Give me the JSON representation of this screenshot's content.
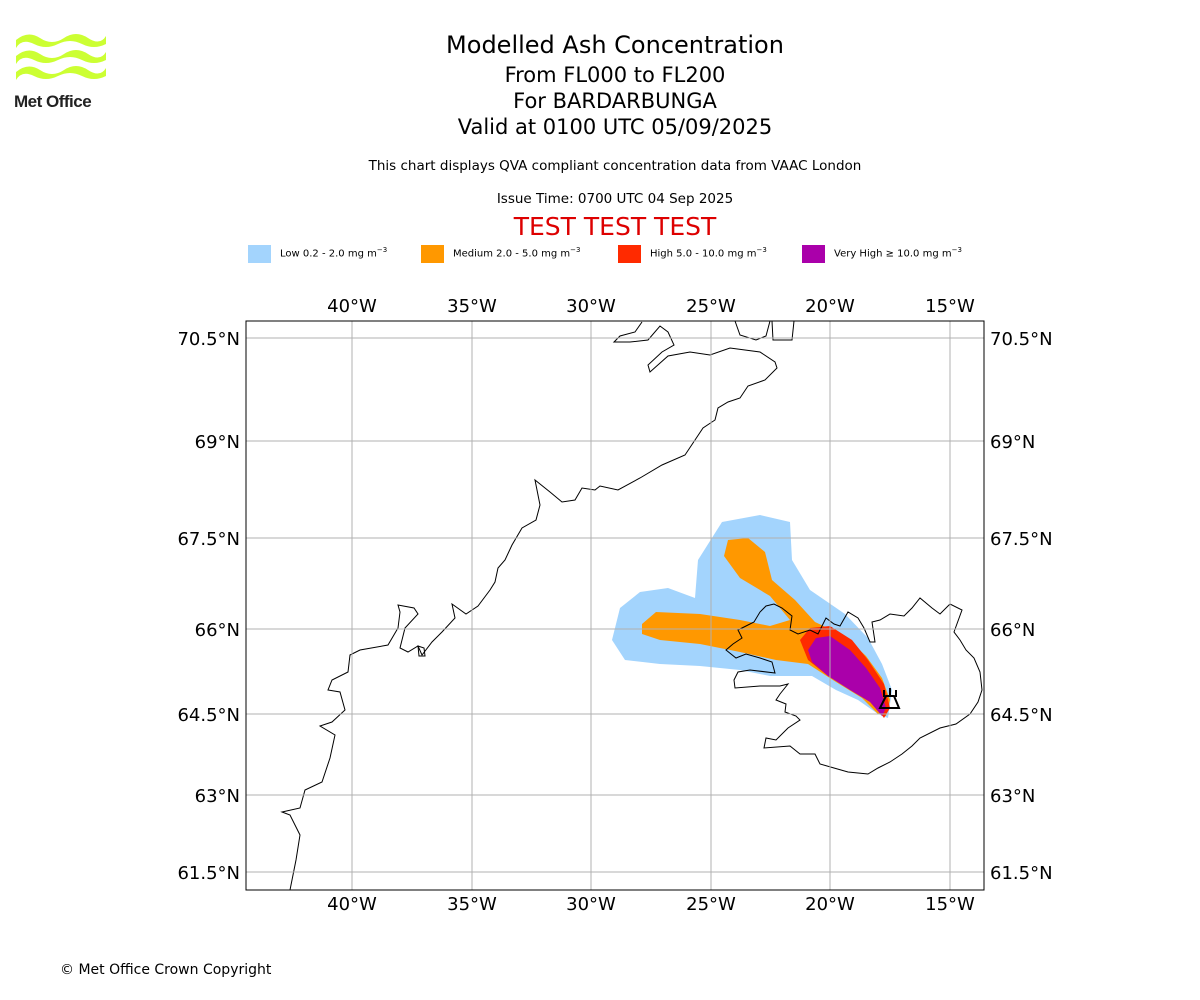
{
  "logo": {
    "text": "Met Office",
    "color": "#ccff33",
    "icon": "met-office-wave-logo"
  },
  "header": {
    "title": "Modelled Ash Concentration",
    "levels": "From FL000 to FL200",
    "volcano": "For BARDARBUNGA",
    "valid": "Valid at 0100 UTC 05/09/2025",
    "compliance": "This chart displays QVA compliant concentration data from VAAC London",
    "issue_time": "Issue Time: 0700 UTC 04 Sep 2025",
    "test_banner": "TEST TEST TEST",
    "test_color": "#dd0000"
  },
  "legend": [
    {
      "label": "Low 0.2 - 2.0 mg m",
      "color": "#a3d4fd"
    },
    {
      "label": "Medium 2.0 - 5.0 mg m",
      "color": "#ff9800"
    },
    {
      "label": "High 5.0 - 10.0 mg m",
      "color": "#ff2a00"
    },
    {
      "label": "Very High ≥ 10.0 mg m",
      "color": "#aa00aa"
    }
  ],
  "legend_unit_exponent": "−3",
  "map": {
    "lon_ticks": [
      "40°W",
      "35°W",
      "30°W",
      "25°W",
      "20°W",
      "15°W"
    ],
    "lat_ticks": [
      "70.5°N",
      "69°N",
      "67.5°N",
      "66°N",
      "64.5°N",
      "63°N",
      "61.5°N"
    ],
    "volcano_marker": "volcano-icon"
  },
  "footer": {
    "copyright": "© Met Office Crown Copyright"
  }
}
